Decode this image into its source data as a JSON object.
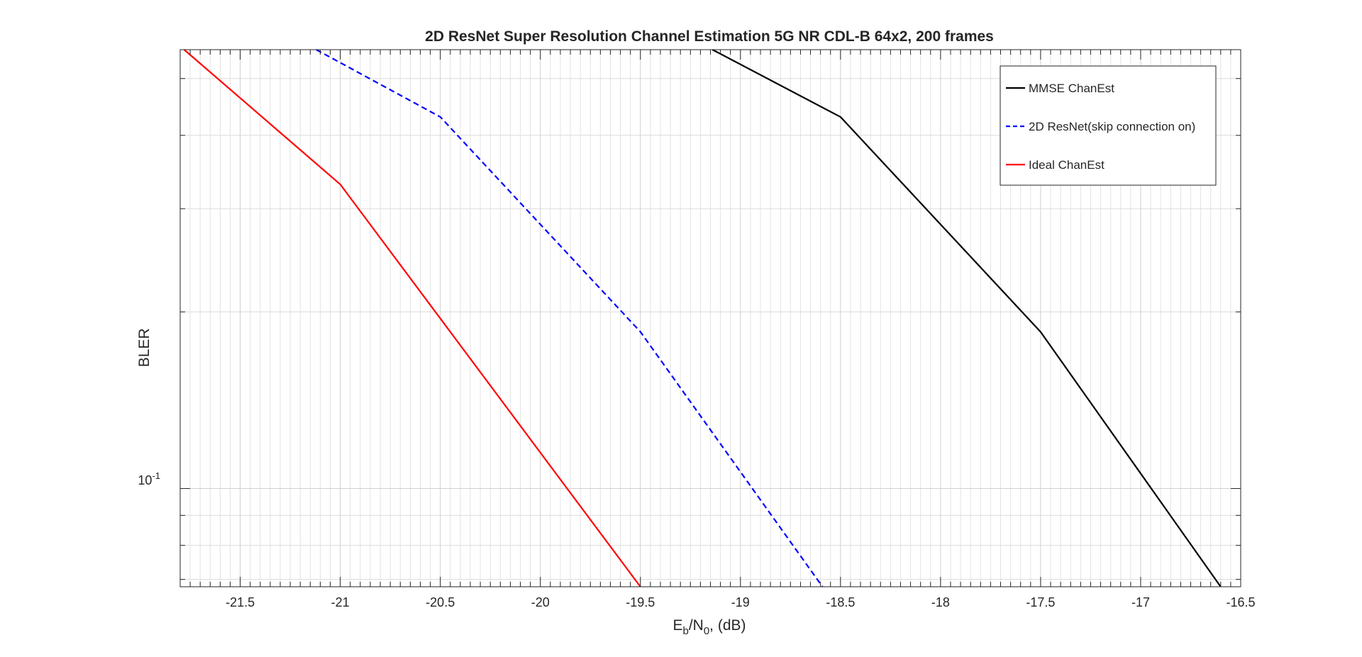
{
  "chart_data": {
    "type": "line",
    "title": "2D ResNet Super Resolution Channel Estimation 5G NR CDL-B 64x2, 200 frames",
    "xlabel": {
      "base": "E",
      "sub1": "b",
      "mid": "/N",
      "sub2": "0",
      "tail": ", (dB)"
    },
    "ylabel": "BLER",
    "xlim": [
      -21.8,
      -16.5
    ],
    "ylim": [
      0.068,
      0.56
    ],
    "yscale": "log",
    "grid": true,
    "minor_grid": true,
    "legend_position": "top-right",
    "x_ticks": [
      -21.5,
      -21,
      -20.5,
      -20,
      -19.5,
      -19,
      -18.5,
      -18,
      -17.5,
      -17,
      -16.5
    ],
    "x_tick_labels": [
      "-21.5",
      "-21",
      "-20.5",
      "-20",
      "-19.5",
      "-19",
      "-18.5",
      "-18",
      "-17.5",
      "-17",
      "-16.5"
    ],
    "y_ticks": [
      0.1
    ],
    "y_tick_label": {
      "base": "10",
      "exp": "-1"
    },
    "series": [
      {
        "name": "MMSE ChanEst",
        "color": "#000000",
        "dash": "solid",
        "x": [
          -19.14,
          -18.5,
          -17.5,
          -16.6
        ],
        "y": [
          0.56,
          0.43,
          0.185,
          0.068
        ]
      },
      {
        "name": "2D ResNet(skip connection on)",
        "color": "#0000ff",
        "dash": "dashed",
        "x": [
          -21.12,
          -20.5,
          -19.5,
          -18.59
        ],
        "y": [
          0.56,
          0.43,
          0.185,
          0.068
        ]
      },
      {
        "name": "Ideal ChanEst",
        "color": "#ff0000",
        "dash": "solid",
        "x": [
          -21.78,
          -21.0,
          -19.5
        ],
        "y": [
          0.56,
          0.33,
          0.068
        ]
      }
    ]
  }
}
